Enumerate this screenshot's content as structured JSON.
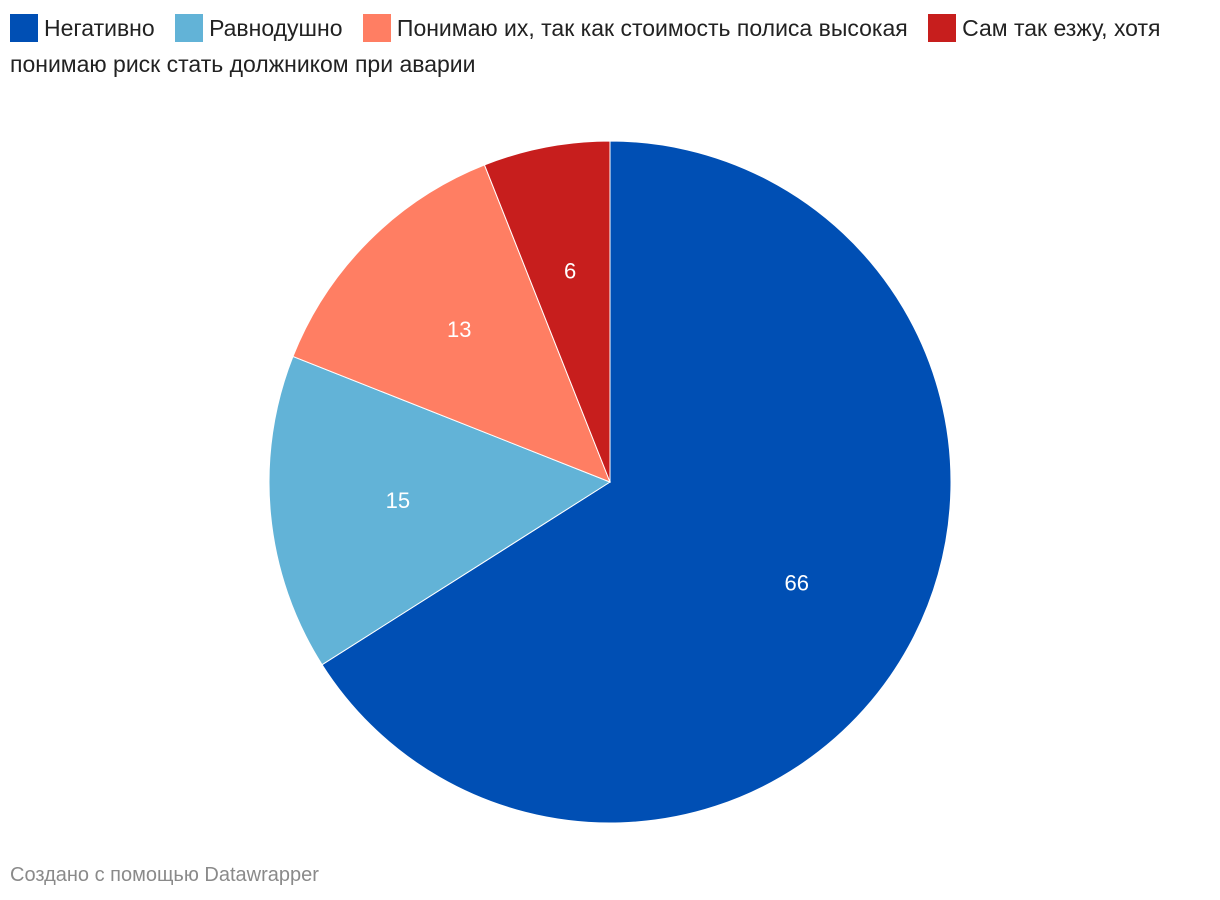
{
  "chart_data": {
    "type": "pie",
    "categories": [
      "Негативно",
      "Равнодушно",
      "Понимаю их, так как стоимость полиса высокая",
      "Сам так езжу, хотя понимаю риск стать должником при аварии"
    ],
    "values": [
      66,
      15,
      13,
      6
    ],
    "colors": [
      "#004fb4",
      "#62b3d7",
      "#ff7e63",
      "#c71e1d"
    ],
    "credit": "Создано с помощью Datawrapper"
  }
}
